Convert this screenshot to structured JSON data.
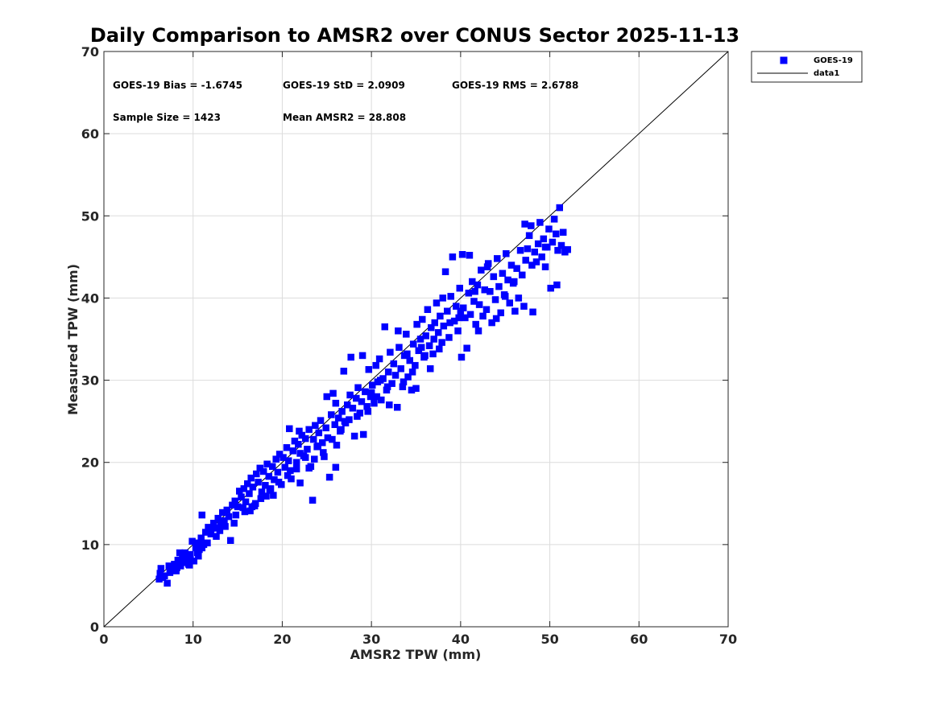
{
  "chart_data": {
    "type": "scatter",
    "title": "Daily Comparison to AMSR2 over CONUS Sector 2025-11-13",
    "xlabel": "AMSR2 TPW (mm)",
    "ylabel": "Measured TPW (mm)",
    "xlim": [
      0,
      70
    ],
    "ylim": [
      0,
      70
    ],
    "xticks": [
      "0",
      "10",
      "20",
      "30",
      "40",
      "50",
      "60",
      "70"
    ],
    "yticks": [
      "0",
      "10",
      "20",
      "30",
      "40",
      "50",
      "60",
      "70"
    ],
    "grid": true,
    "legend_position": "top-right-outside",
    "stats": {
      "bias": "GOES-19 Bias = -1.6745",
      "std": "GOES-19 StD = 2.0909",
      "rms": "GOES-19 RMS = 2.6788",
      "sample_size": "Sample Size = 1423",
      "mean": "Mean AMSR2 = 28.808"
    },
    "series": [
      {
        "name": "GOES-19",
        "marker": "square",
        "color": "#0000ff",
        "points": [
          [
            6.2,
            5.8
          ],
          [
            6.3,
            6.5
          ],
          [
            6.4,
            7.1
          ],
          [
            6.8,
            6.2
          ],
          [
            7.1,
            5.3
          ],
          [
            7.3,
            7.4
          ],
          [
            7.6,
            6.9
          ],
          [
            7.9,
            7.6
          ],
          [
            8.1,
            6.8
          ],
          [
            8.3,
            8.1
          ],
          [
            8.6,
            7.4
          ],
          [
            8.8,
            8.4
          ],
          [
            9.0,
            7.8
          ],
          [
            9.1,
            9.0
          ],
          [
            9.3,
            8.2
          ],
          [
            9.5,
            7.6
          ],
          [
            9.7,
            8.8
          ],
          [
            9.9,
            10.4
          ],
          [
            10.1,
            8.0
          ],
          [
            10.3,
            9.6
          ],
          [
            10.5,
            10.2
          ],
          [
            10.7,
            9.4
          ],
          [
            10.9,
            10.8
          ],
          [
            11.0,
            13.6
          ],
          [
            11.2,
            10.0
          ],
          [
            11.4,
            11.5
          ],
          [
            11.7,
            12.1
          ],
          [
            12.0,
            11.3
          ],
          [
            12.3,
            12.6
          ],
          [
            12.5,
            12.0
          ],
          [
            12.8,
            13.2
          ],
          [
            13.1,
            12.4
          ],
          [
            13.3,
            13.9
          ],
          [
            13.5,
            12.9
          ],
          [
            13.8,
            14.2
          ],
          [
            14.0,
            13.4
          ],
          [
            14.2,
            10.5
          ],
          [
            14.4,
            14.8
          ],
          [
            14.7,
            15.3
          ],
          [
            15.0,
            14.6
          ],
          [
            15.2,
            16.5
          ],
          [
            15.4,
            15.8
          ],
          [
            15.7,
            16.8
          ],
          [
            15.9,
            15.2
          ],
          [
            16.1,
            17.4
          ],
          [
            16.3,
            16.2
          ],
          [
            16.5,
            18.1
          ],
          [
            16.7,
            17.0
          ],
          [
            16.9,
            14.7
          ],
          [
            17.1,
            18.6
          ],
          [
            17.3,
            17.6
          ],
          [
            17.5,
            19.3
          ],
          [
            17.7,
            16.4
          ],
          [
            17.9,
            18.9
          ],
          [
            18.1,
            17.2
          ],
          [
            18.3,
            19.8
          ],
          [
            18.5,
            18.3
          ],
          [
            18.7,
            16.8
          ],
          [
            18.9,
            19.5
          ],
          [
            19.1,
            17.9
          ],
          [
            19.3,
            20.4
          ],
          [
            19.5,
            18.8
          ],
          [
            19.7,
            21.0
          ],
          [
            19.9,
            17.3
          ],
          [
            20.1,
            20.6
          ],
          [
            20.3,
            19.4
          ],
          [
            20.5,
            21.8
          ],
          [
            20.7,
            20.2
          ],
          [
            20.8,
            24.1
          ],
          [
            21.0,
            18.0
          ],
          [
            21.2,
            21.4
          ],
          [
            21.4,
            22.6
          ],
          [
            21.6,
            20.0
          ],
          [
            21.8,
            22.2
          ],
          [
            22.0,
            21.1
          ],
          [
            22.2,
            23.3
          ],
          [
            22.4,
            20.8
          ],
          [
            22.6,
            22.9
          ],
          [
            22.8,
            21.6
          ],
          [
            23.0,
            24.0
          ],
          [
            23.2,
            19.5
          ],
          [
            23.4,
            15.4
          ],
          [
            23.5,
            22.8
          ],
          [
            23.7,
            24.5
          ],
          [
            23.9,
            21.9
          ],
          [
            24.1,
            23.6
          ],
          [
            24.3,
            25.1
          ],
          [
            24.5,
            22.4
          ],
          [
            24.7,
            20.7
          ],
          [
            24.9,
            24.2
          ],
          [
            25.1,
            23.0
          ],
          [
            25.3,
            18.2
          ],
          [
            25.5,
            25.8
          ],
          [
            25.7,
            28.4
          ],
          [
            25.9,
            24.6
          ],
          [
            26.1,
            22.1
          ],
          [
            26.3,
            25.4
          ],
          [
            26.5,
            23.8
          ],
          [
            26.7,
            26.2
          ],
          [
            26.9,
            31.1
          ],
          [
            27.1,
            24.8
          ],
          [
            27.3,
            27.0
          ],
          [
            27.5,
            25.2
          ],
          [
            27.7,
            32.8
          ],
          [
            27.9,
            26.6
          ],
          [
            28.1,
            23.2
          ],
          [
            28.3,
            27.8
          ],
          [
            28.5,
            29.1
          ],
          [
            28.7,
            26.0
          ],
          [
            28.9,
            27.4
          ],
          [
            29.1,
            23.4
          ],
          [
            29.3,
            28.6
          ],
          [
            29.5,
            26.8
          ],
          [
            29.7,
            31.3
          ],
          [
            29.9,
            28.0
          ],
          [
            30.1,
            29.4
          ],
          [
            30.3,
            27.2
          ],
          [
            30.5,
            31.8
          ],
          [
            30.7,
            29.8
          ],
          [
            30.9,
            32.6
          ],
          [
            31.1,
            27.6
          ],
          [
            31.3,
            30.2
          ],
          [
            31.5,
            36.5
          ],
          [
            31.7,
            28.8
          ],
          [
            31.9,
            31.0
          ],
          [
            32.1,
            33.4
          ],
          [
            32.3,
            29.6
          ],
          [
            32.5,
            32.0
          ],
          [
            32.7,
            30.6
          ],
          [
            32.9,
            26.7
          ],
          [
            33.1,
            34.0
          ],
          [
            33.3,
            31.4
          ],
          [
            33.5,
            29.2
          ],
          [
            33.7,
            33.0
          ],
          [
            33.9,
            35.6
          ],
          [
            34.1,
            30.4
          ],
          [
            34.3,
            32.4
          ],
          [
            34.5,
            28.8
          ],
          [
            34.7,
            34.4
          ],
          [
            34.9,
            31.8
          ],
          [
            35.1,
            36.8
          ],
          [
            35.3,
            33.6
          ],
          [
            35.5,
            35.0
          ],
          [
            35.7,
            37.4
          ],
          [
            35.9,
            32.8
          ],
          [
            36.1,
            35.4
          ],
          [
            36.3,
            38.6
          ],
          [
            36.5,
            34.2
          ],
          [
            36.7,
            36.4
          ],
          [
            36.9,
            33.2
          ],
          [
            37.1,
            37.0
          ],
          [
            37.3,
            39.4
          ],
          [
            37.5,
            35.8
          ],
          [
            37.7,
            37.8
          ],
          [
            37.9,
            34.6
          ],
          [
            38.1,
            36.6
          ],
          [
            38.3,
            43.2
          ],
          [
            38.5,
            38.4
          ],
          [
            38.7,
            35.2
          ],
          [
            38.9,
            40.2
          ],
          [
            39.1,
            45.0
          ],
          [
            39.3,
            37.2
          ],
          [
            39.5,
            39.0
          ],
          [
            39.7,
            36.0
          ],
          [
            39.9,
            41.2
          ],
          [
            40.1,
            32.8
          ],
          [
            40.3,
            38.8
          ],
          [
            40.5,
            37.6
          ],
          [
            40.7,
            33.9
          ],
          [
            40.9,
            40.6
          ],
          [
            41.1,
            38.0
          ],
          [
            41.3,
            42.0
          ],
          [
            41.5,
            39.6
          ],
          [
            41.7,
            36.8
          ],
          [
            41.9,
            41.6
          ],
          [
            42.1,
            39.2
          ],
          [
            42.3,
            43.4
          ],
          [
            42.5,
            37.8
          ],
          [
            42.7,
            41.0
          ],
          [
            42.9,
            38.6
          ],
          [
            43.1,
            44.2
          ],
          [
            43.3,
            40.8
          ],
          [
            43.5,
            37.0
          ],
          [
            43.7,
            42.6
          ],
          [
            43.9,
            39.8
          ],
          [
            44.1,
            44.8
          ],
          [
            44.3,
            41.4
          ],
          [
            44.5,
            38.2
          ],
          [
            44.7,
            43.0
          ],
          [
            44.9,
            40.4
          ],
          [
            45.1,
            45.4
          ],
          [
            45.3,
            42.2
          ],
          [
            45.5,
            39.4
          ],
          [
            45.7,
            44.0
          ],
          [
            45.9,
            41.8
          ],
          [
            46.1,
            38.4
          ],
          [
            46.3,
            43.6
          ],
          [
            46.5,
            40.0
          ],
          [
            46.7,
            45.8
          ],
          [
            46.9,
            42.8
          ],
          [
            47.1,
            39.0
          ],
          [
            47.3,
            44.6
          ],
          [
            47.5,
            46.0
          ],
          [
            47.7,
            47.6
          ],
          [
            47.9,
            48.8
          ],
          [
            48.1,
            38.3
          ],
          [
            48.3,
            45.6
          ],
          [
            48.5,
            44.4
          ],
          [
            48.7,
            46.6
          ],
          [
            48.9,
            49.2
          ],
          [
            49.1,
            45.0
          ],
          [
            49.3,
            47.2
          ],
          [
            49.5,
            43.8
          ],
          [
            49.7,
            46.2
          ],
          [
            49.9,
            48.4
          ],
          [
            50.1,
            41.2
          ],
          [
            50.3,
            46.8
          ],
          [
            50.5,
            49.6
          ],
          [
            50.7,
            47.8
          ],
          [
            50.9,
            45.8
          ],
          [
            51.1,
            51.0
          ],
          [
            51.3,
            46.4
          ],
          [
            51.5,
            48.0
          ],
          [
            51.7,
            45.6
          ],
          [
            52.0,
            45.9
          ],
          [
            41.0,
            45.2
          ],
          [
            40.2,
            45.3
          ],
          [
            47.2,
            49.0
          ],
          [
            50.8,
            41.6
          ],
          [
            38.0,
            40.0
          ],
          [
            36.0,
            33.0
          ],
          [
            35.0,
            29.0
          ],
          [
            33.0,
            36.0
          ],
          [
            29.0,
            33.0
          ],
          [
            27.0,
            25.0
          ],
          [
            25.0,
            28.0
          ],
          [
            26.0,
            19.4
          ],
          [
            23.0,
            19.3
          ],
          [
            22.0,
            17.5
          ],
          [
            19.0,
            16.0
          ],
          [
            17.0,
            15.0
          ],
          [
            15.6,
            14.5
          ],
          [
            13.0,
            11.7
          ],
          [
            11.0,
            9.6
          ],
          [
            9.6,
            7.5
          ],
          [
            8.5,
            9.0
          ],
          [
            10.5,
            9.0
          ],
          [
            12.1,
            12.0
          ],
          [
            14.8,
            13.6
          ],
          [
            16.4,
            14.1
          ],
          [
            18.2,
            15.9
          ],
          [
            20.9,
            19.0
          ],
          [
            21.9,
            23.8
          ],
          [
            24.6,
            21.2
          ],
          [
            26.0,
            27.2
          ],
          [
            28.4,
            25.6
          ],
          [
            30.0,
            28.5
          ],
          [
            31.0,
            30.0
          ],
          [
            32.0,
            27.0
          ],
          [
            34.0,
            33.2
          ],
          [
            36.6,
            31.4
          ],
          [
            37.0,
            35.0
          ],
          [
            39.8,
            37.6
          ],
          [
            42.0,
            36.0
          ],
          [
            44.0,
            37.5
          ],
          [
            45.0,
            40.2
          ],
          [
            46.0,
            42.0
          ],
          [
            48.0,
            44.0
          ],
          [
            49.5,
            46.2
          ],
          [
            43.0,
            43.8
          ],
          [
            41.6,
            40.8
          ],
          [
            40.0,
            38.4
          ],
          [
            38.8,
            37.0
          ],
          [
            37.6,
            33.8
          ],
          [
            35.6,
            34.0
          ],
          [
            34.6,
            31.0
          ],
          [
            33.6,
            29.8
          ],
          [
            31.8,
            29.2
          ],
          [
            30.6,
            28.0
          ],
          [
            29.6,
            26.2
          ],
          [
            27.6,
            28.2
          ],
          [
            26.6,
            24.0
          ],
          [
            25.6,
            22.8
          ],
          [
            24.0,
            22.0
          ],
          [
            23.6,
            20.4
          ],
          [
            22.6,
            20.6
          ],
          [
            21.6,
            19.2
          ],
          [
            20.6,
            18.4
          ],
          [
            19.6,
            17.6
          ],
          [
            18.6,
            16.6
          ],
          [
            17.6,
            15.6
          ],
          [
            16.6,
            14.6
          ],
          [
            15.8,
            14.0
          ],
          [
            14.6,
            12.6
          ],
          [
            13.6,
            12.2
          ],
          [
            12.6,
            11.0
          ],
          [
            11.6,
            10.2
          ],
          [
            10.6,
            8.6
          ],
          [
            9.4,
            8.0
          ],
          [
            8.2,
            7.2
          ],
          [
            7.4,
            6.6
          ],
          [
            6.6,
            6.0
          ]
        ]
      },
      {
        "name": "data1",
        "type": "line",
        "color": "#000000",
        "x": [
          0,
          70
        ],
        "y": [
          0,
          70
        ]
      }
    ]
  }
}
